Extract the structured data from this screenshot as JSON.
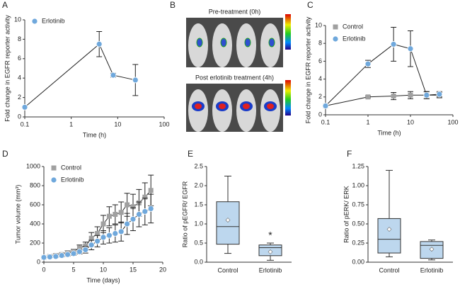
{
  "chart_data": [
    {
      "type": "line",
      "panel": "A",
      "xlabel": "Time (h)",
      "ylabel": "Fold change in EGFR reporter activity",
      "x": [
        0.1,
        4,
        8,
        24
      ],
      "xscale": "log",
      "xlim": [
        0.1,
        100
      ],
      "xticks": [
        0.1,
        1,
        10,
        100
      ],
      "ylim": [
        0,
        10
      ],
      "yticks": [
        0,
        2,
        4,
        6,
        8,
        10
      ],
      "legend": "upper left",
      "series": [
        {
          "name": "Erlotinib",
          "color": "#6fa8dc",
          "marker": "circle",
          "values": [
            1,
            7.5,
            4.3,
            3.8
          ],
          "errors": [
            0,
            1.3,
            0.2,
            1.6
          ]
        }
      ]
    },
    {
      "type": "image",
      "panel": "B",
      "captions": [
        "Pre-treatment (0h)",
        "Post erlotinib treatment (4h)"
      ]
    },
    {
      "type": "line",
      "panel": "C",
      "xlabel": "Time (h)",
      "ylabel": "Fold change in EGFR reporter activity",
      "x": [
        0.1,
        1,
        4,
        10,
        24,
        48
      ],
      "xscale": "log",
      "xlim": [
        0.1,
        100
      ],
      "xticks": [
        0.1,
        1,
        10,
        100
      ],
      "ylim": [
        0,
        10
      ],
      "yticks": [
        0,
        2,
        4,
        6,
        8,
        10
      ],
      "legend": "upper left",
      "series": [
        {
          "name": "Control",
          "color": "#a0a0a0",
          "marker": "square",
          "values": [
            1,
            2,
            2.1,
            2.2,
            2.2,
            2.2
          ],
          "errors": [
            0,
            0.1,
            0.4,
            0.4,
            0.4,
            0.3
          ]
        },
        {
          "name": "Erlotinib",
          "color": "#6fa8dc",
          "marker": "circle",
          "values": [
            1,
            5.7,
            7.9,
            7.4,
            2.2,
            2.3
          ],
          "errors": [
            0,
            0.4,
            1.9,
            2.0,
            0.4,
            0.3
          ]
        }
      ]
    },
    {
      "type": "line",
      "panel": "D",
      "xlabel": "Time (days)",
      "ylabel": "Tumor volume (mm³)",
      "x": [
        0,
        1,
        2,
        3,
        4,
        5,
        6,
        7,
        8,
        9,
        10,
        11,
        12,
        13,
        14,
        15,
        16,
        17,
        18
      ],
      "xscale": "linear",
      "xlim": [
        0,
        20
      ],
      "xticks": [
        0,
        5,
        10,
        15,
        20
      ],
      "ylim": [
        0,
        1000
      ],
      "yticks": [
        0,
        200,
        400,
        600,
        800,
        1000
      ],
      "legend": "upper left",
      "series": [
        {
          "name": "Control",
          "color": "#a0a0a0",
          "marker": "square",
          "values": [
            50,
            60,
            70,
            80,
            100,
            110,
            150,
            170,
            250,
            300,
            400,
            480,
            500,
            520,
            600,
            580,
            620,
            680,
            750
          ],
          "errors": [
            10,
            10,
            15,
            15,
            20,
            25,
            30,
            40,
            60,
            70,
            90,
            100,
            100,
            110,
            120,
            130,
            140,
            150,
            160
          ]
        },
        {
          "name": "Erlotinib",
          "color": "#6fa8dc",
          "marker": "circle",
          "values": [
            50,
            55,
            60,
            70,
            80,
            90,
            110,
            130,
            180,
            220,
            260,
            280,
            300,
            320,
            400,
            450,
            500,
            530,
            560
          ],
          "errors": [
            10,
            10,
            12,
            15,
            18,
            20,
            25,
            35,
            50,
            60,
            70,
            80,
            90,
            100,
            110,
            120,
            130,
            140,
            150
          ]
        }
      ]
    },
    {
      "type": "box",
      "panel": "E",
      "ylabel": "Ratio of pEGFR/ EGFR",
      "categories": [
        "Control",
        "Erlotinib"
      ],
      "ylim": [
        0,
        2.5
      ],
      "yticks": [
        {
          "value": 0,
          "label": "0.0"
        },
        0.5,
        {
          "value": 1,
          "label": "1.0"
        },
        1.5,
        {
          "value": 2,
          "label": "2.0"
        },
        2.5
      ],
      "color": "#bdd7ee",
      "annotation": "*",
      "stats": {
        "min": [
          0.23,
          0.05
        ],
        "q1": [
          0.47,
          0.17
        ],
        "median": [
          0.93,
          0.38
        ],
        "q3": [
          1.58,
          0.45
        ],
        "max": [
          2.25,
          0.5
        ],
        "mean": [
          1.1,
          0.27
        ]
      }
    },
    {
      "type": "box",
      "panel": "F",
      "ylabel": "Ratio of pERK/ ERK",
      "categories": [
        "Control",
        "Erlotinib"
      ],
      "ylim": [
        0,
        1.25
      ],
      "yticks": [
        {
          "value": 0,
          "label": "0.00"
        },
        0.25,
        {
          "value": 0.5,
          "label": "0.50"
        },
        0.75,
        {
          "value": 1,
          "label": "1.00"
        },
        1.25
      ],
      "color": "#bdd7ee",
      "stats": {
        "min": [
          0.07,
          0.03
        ],
        "q1": [
          0.12,
          0.05
        ],
        "median": [
          0.3,
          0.22
        ],
        "q3": [
          0.57,
          0.27
        ],
        "max": [
          1.2,
          0.29
        ],
        "mean": [
          0.43,
          0.17
        ]
      }
    }
  ]
}
